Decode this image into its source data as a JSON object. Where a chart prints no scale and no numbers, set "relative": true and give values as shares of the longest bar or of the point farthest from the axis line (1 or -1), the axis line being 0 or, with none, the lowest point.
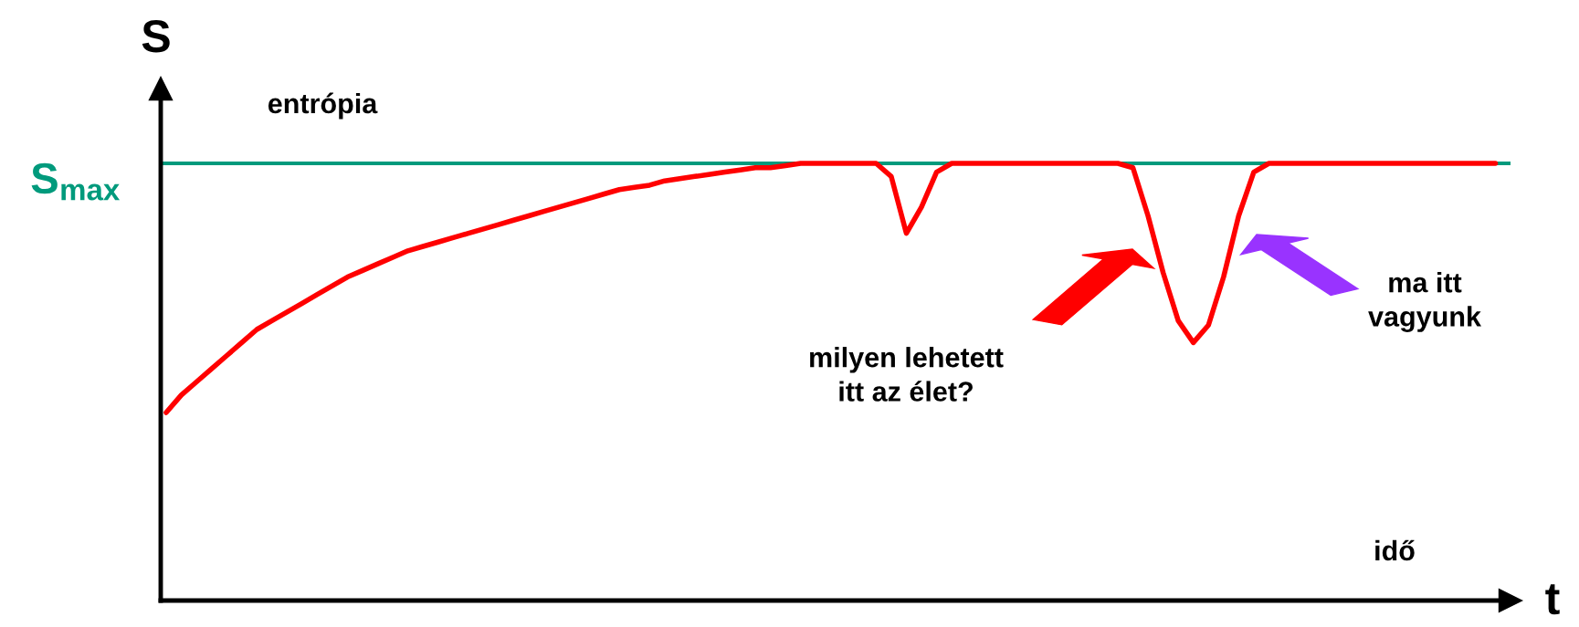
{
  "chart_data": {
    "type": "line",
    "relative": true,
    "xlabel": "t",
    "ylabel": "S",
    "categories": [
      null,
      null,
      null,
      null,
      null,
      null,
      null,
      null,
      null,
      null,
      null,
      null,
      null,
      null,
      null,
      null,
      null,
      null,
      null,
      null,
      null,
      null,
      null,
      null,
      null,
      null,
      null,
      null,
      null,
      null,
      null,
      null,
      null,
      null,
      null,
      null,
      null,
      null,
      null,
      null,
      null,
      null,
      null,
      null,
      null,
      null,
      null,
      null,
      null,
      null,
      null,
      null,
      null,
      null,
      null,
      null,
      null,
      null,
      null,
      null,
      null,
      null,
      null,
      null,
      null,
      null,
      null,
      null,
      null,
      null,
      null,
      null,
      null,
      null,
      null,
      null,
      null,
      null,
      null,
      null,
      null,
      null,
      null,
      null,
      null,
      null,
      null,
      null,
      null
    ],
    "series": [
      {
        "color": "#ff0000",
        "values": [
          0.43,
          0.47,
          0.5,
          0.53,
          0.56,
          0.59,
          0.62,
          0.64,
          0.66,
          0.68,
          0.7,
          0.72,
          0.74,
          0.755,
          0.77,
          0.785,
          0.8,
          0.81,
          0.82,
          0.83,
          0.84,
          0.85,
          0.86,
          0.87,
          0.88,
          0.89,
          0.9,
          0.91,
          0.92,
          0.93,
          0.94,
          0.945,
          0.95,
          0.96,
          0.965,
          0.97,
          0.975,
          0.98,
          0.985,
          0.99,
          0.99,
          0.995,
          1,
          1,
          1,
          1,
          1,
          1,
          0.97,
          0.84,
          0.9,
          0.98,
          1,
          1,
          1,
          1,
          1,
          1,
          1,
          1,
          1,
          1,
          1,
          1,
          0.99,
          0.88,
          0.75,
          0.64,
          0.59,
          0.63,
          0.74,
          0.88,
          0.98,
          1,
          1,
          1,
          1,
          1,
          1,
          1,
          1,
          1,
          1,
          1,
          1,
          1,
          1,
          1,
          1
        ]
      }
    ],
    "ref_lines": [
      {
        "axis": "y",
        "value": 1,
        "label": "S$_{max}$",
        "color": "#009a7c"
      }
    ],
    "annotations": [
      "entrópia",
      "idő",
      "milyen lehetett\nitt az élet?",
      "ma itt\nvagyunk"
    ],
    "marker": "none",
    "line_style": "solid"
  }
}
